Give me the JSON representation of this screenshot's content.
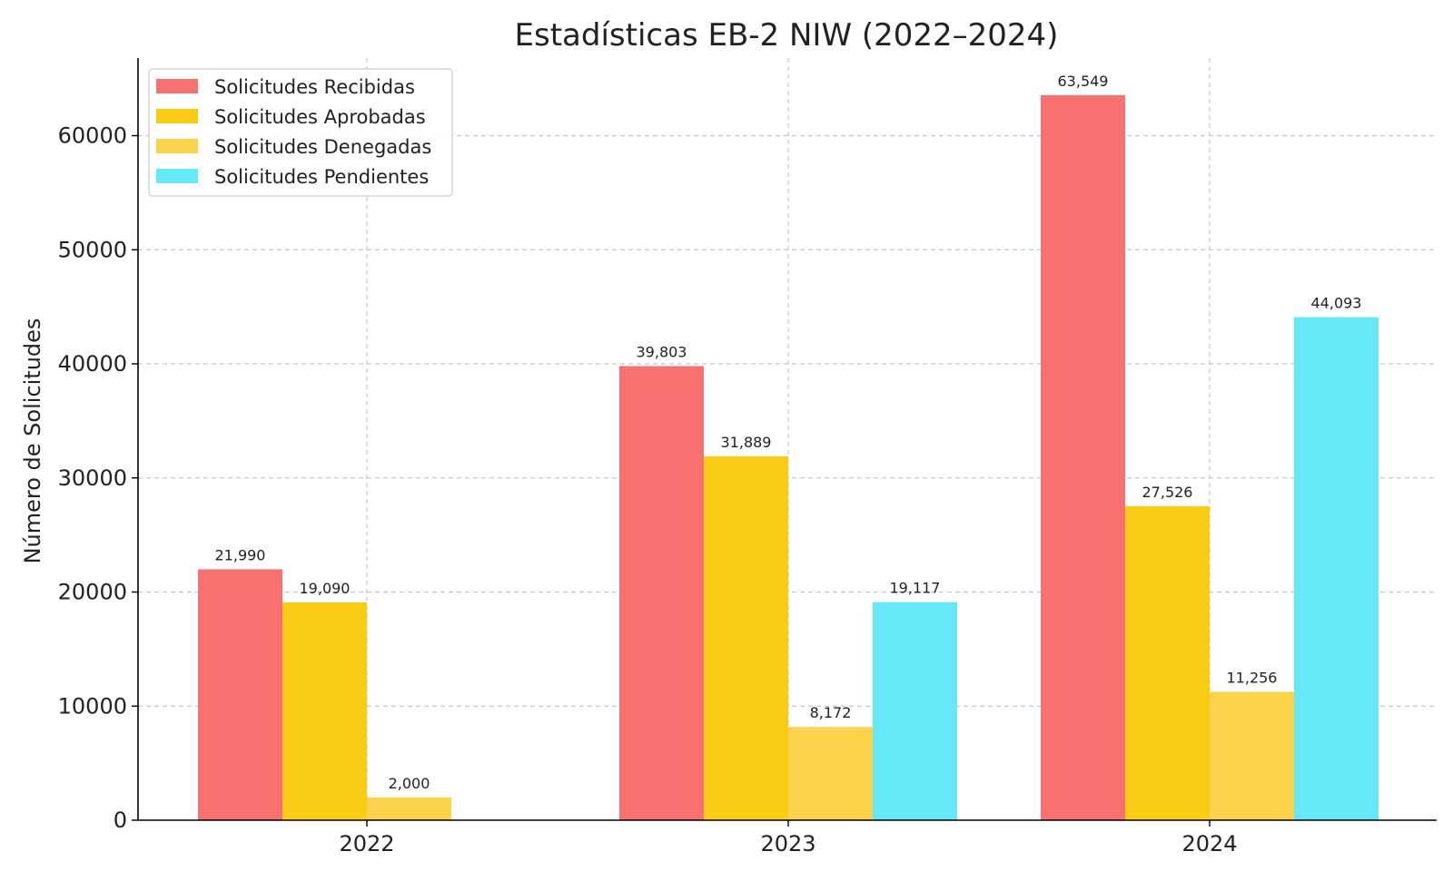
{
  "chart_data": {
    "type": "bar",
    "title": "Estadísticas EB-2 NIW (2022–2024)",
    "xlabel": "",
    "ylabel": "Número de Solicitudes",
    "categories": [
      "2022",
      "2023",
      "2024"
    ],
    "series": [
      {
        "name": "Solicitudes Recibidas",
        "color": "#f87171",
        "values": [
          21990,
          39803,
          63549
        ],
        "labels": [
          "21,990",
          "39,803",
          "63,549"
        ]
      },
      {
        "name": "Solicitudes Aprobadas",
        "color": "#facc15",
        "values": [
          19090,
          31889,
          27526
        ],
        "labels": [
          "19,090",
          "31,889",
          "27,526"
        ]
      },
      {
        "name": "Solicitudes Denegadas",
        "color": "#fcd34d",
        "values": [
          2000,
          8172,
          11256
        ],
        "labels": [
          "2,000",
          "8,172",
          "11,256"
        ]
      },
      {
        "name": "Solicitudes Pendientes",
        "color": "#67e8f9",
        "values": [
          null,
          19117,
          44093
        ],
        "labels": [
          "",
          "19,117",
          "44,093"
        ]
      }
    ],
    "ylim": [
      0,
      66800
    ],
    "yticks": [
      0,
      10000,
      20000,
      30000,
      40000,
      50000,
      60000
    ],
    "ytick_labels": [
      "0",
      "10000",
      "20000",
      "30000",
      "40000",
      "50000",
      "60000"
    ],
    "grid": true,
    "legend": "top-left"
  }
}
